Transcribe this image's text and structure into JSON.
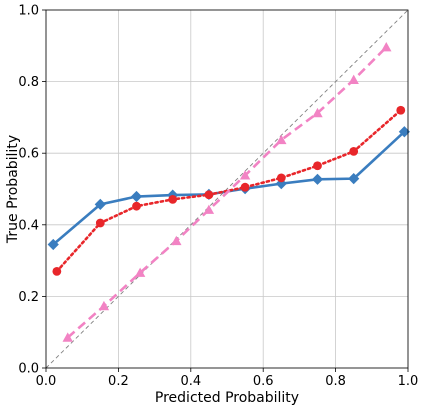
{
  "chart_data": {
    "type": "line",
    "title": "",
    "xlabel": "Predicted Probability",
    "ylabel": "True Probability",
    "xlim": [
      0.0,
      1.0
    ],
    "ylim": [
      0.0,
      1.0
    ],
    "xticks": [
      "0.0",
      "0.2",
      "0.4",
      "0.6",
      "0.8",
      "1.0"
    ],
    "yticks": [
      "0.0",
      "0.2",
      "0.4",
      "0.6",
      "0.8",
      "1.0"
    ],
    "grid": true,
    "legend": "none",
    "reference_line": {
      "x": [
        0.0,
        1.0
      ],
      "y": [
        0.0,
        1.0
      ],
      "color": "#808080",
      "style": "dashed"
    },
    "series": [
      {
        "color": "#3a7dbf",
        "marker": "diamond",
        "line_style": "solid",
        "x": [
          0.02,
          0.15,
          0.25,
          0.35,
          0.45,
          0.55,
          0.65,
          0.75,
          0.85,
          0.99
        ],
        "y": [
          0.345,
          0.457,
          0.479,
          0.483,
          0.485,
          0.501,
          0.515,
          0.527,
          0.529,
          0.66
        ]
      },
      {
        "color": "#e8262a",
        "marker": "circle",
        "line_style": "dotted",
        "x": [
          0.03,
          0.15,
          0.25,
          0.35,
          0.45,
          0.55,
          0.65,
          0.75,
          0.85,
          0.98
        ],
        "y": [
          0.27,
          0.405,
          0.452,
          0.471,
          0.484,
          0.505,
          0.531,
          0.565,
          0.605,
          0.72
        ]
      },
      {
        "color": "#f283c4",
        "marker": "triangle",
        "line_style": "dashed",
        "x": [
          0.06,
          0.16,
          0.26,
          0.36,
          0.45,
          0.55,
          0.65,
          0.75,
          0.85,
          0.94
        ],
        "y": [
          0.085,
          0.173,
          0.266,
          0.355,
          0.442,
          0.538,
          0.637,
          0.712,
          0.805,
          0.896
        ]
      }
    ]
  }
}
